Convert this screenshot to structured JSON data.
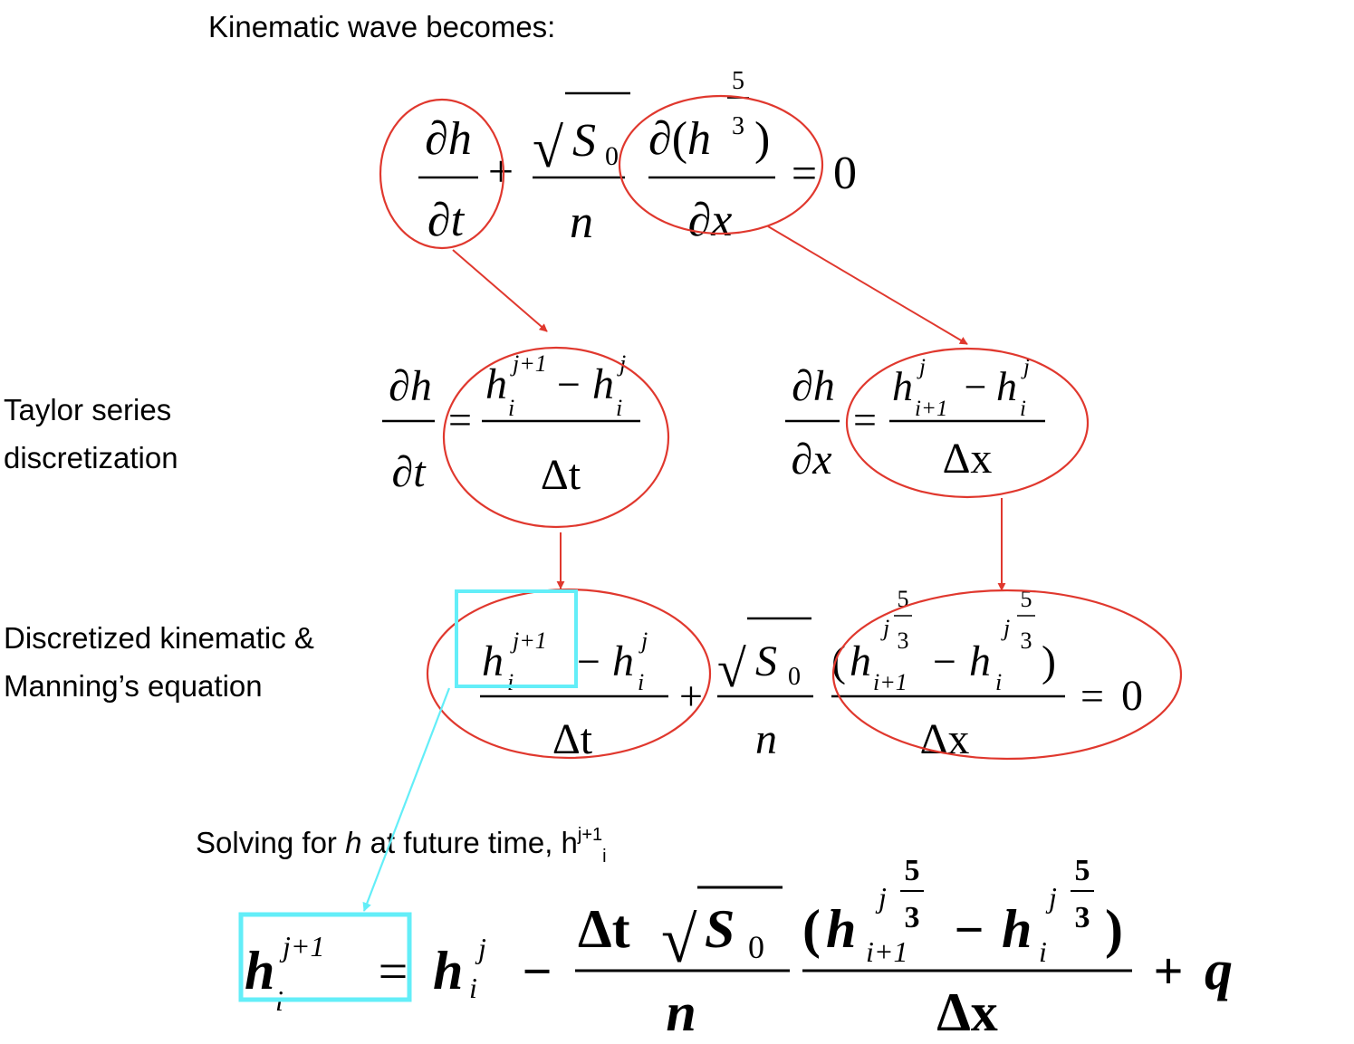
{
  "colors": {
    "annotation_red": "#e0382e",
    "highlight_cyan": "#63eef8",
    "ink": "#000000"
  },
  "labels": {
    "heading": "Kinematic wave becomes:",
    "taylor_line1": "Taylor series",
    "taylor_line2": "discretization",
    "discretized_line1": "Discretized kinematic &",
    "discretized_line2": "Manning’s equation",
    "solving_prefix": "Solving for ",
    "solving_var": "h",
    "solving_middle": "  at future time, h",
    "solving_sup": "j+1",
    "solving_sub": "i"
  },
  "eq1": {
    "partial": "∂",
    "h": "h",
    "t": "t",
    "x": "x",
    "plus": "+",
    "sqrt_sign": "√",
    "S": "S",
    "sub0": "0",
    "n": "n",
    "open_paren": "(",
    "close_paren": ")",
    "five": "5",
    "three": "3",
    "equals": "=",
    "zero": "0"
  },
  "eq2": {
    "partial": "∂",
    "h": "h",
    "t": "t",
    "equals": "=",
    "sup_next": "j+1",
    "sup_j": "j",
    "sub_i": "i",
    "minus": "−",
    "delta_t": "Δt"
  },
  "eq3": {
    "partial": "∂",
    "h": "h",
    "x": "x",
    "equals": "=",
    "sup_j": "j",
    "sub_next": "i+1",
    "sub_i": "i",
    "minus": "−",
    "delta_x": "Δx"
  },
  "eq4": {
    "h": "h",
    "sup_next": "j+1",
    "sup_j": "j",
    "sub_i": "i",
    "sub_next": "i+1",
    "minus": "−",
    "delta_t": "Δt",
    "plus": "+",
    "sqrt_sign": "√",
    "S": "S",
    "sub0": "0",
    "n": "n",
    "open_paren": "(",
    "close_paren": ")",
    "five": "5",
    "three": "3",
    "delta_x": "Δx",
    "equals": "=",
    "zero": "0"
  },
  "eq5": {
    "h": "h",
    "sup_next": "j+1",
    "sup_j": "j",
    "sub_i": "i",
    "sub_next": "i+1",
    "equals": "=",
    "minus": "−",
    "delta_t": "Δt",
    "sqrt_sign": "√",
    "S": "S",
    "sub0": "0",
    "n": "n",
    "open_paren": "(",
    "close_paren": ")",
    "five": "5",
    "three": "3",
    "delta_x": "Δx",
    "plus": "+",
    "q": "q"
  }
}
